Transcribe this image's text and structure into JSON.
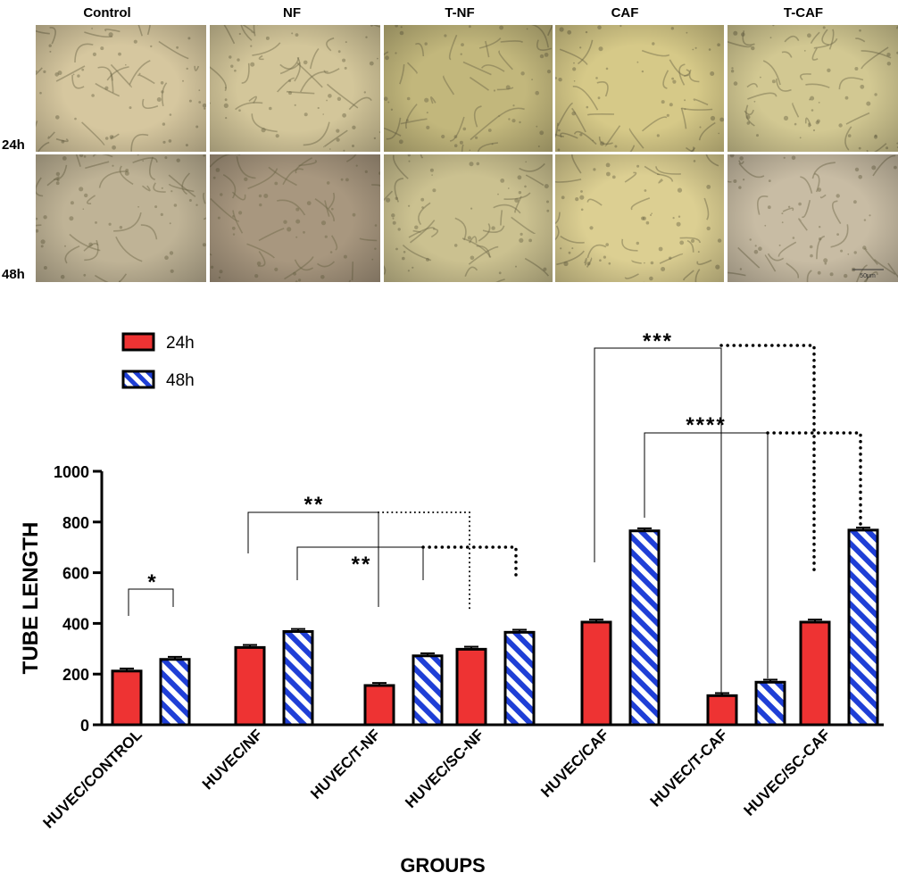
{
  "micrographs": {
    "columns": [
      "Control",
      "NF",
      "T-NF",
      "CAF",
      "T-CAF"
    ],
    "rows": [
      "24h",
      "48h"
    ],
    "scale_bar": "50μm",
    "tones": [
      [
        "#d6c79f",
        "#d3c69a",
        "#c2b77c",
        "#d6c988",
        "#d2c892"
      ],
      [
        "#bfb396",
        "#a8977f",
        "#cbc190",
        "#dccf92",
        "#c8bca4"
      ]
    ]
  },
  "chart_data": {
    "type": "bar",
    "title": "",
    "xlabel": "GROUPS",
    "ylabel": "TUBE LENGTH",
    "ylim": [
      0,
      1000
    ],
    "yticks": [
      "0",
      "200",
      "400",
      "600",
      "800",
      "1000"
    ],
    "categories": [
      "HUVEC/CONTROL",
      "HUVEC/NF",
      "HUVEC/T-NF",
      "HUVEC/SC-NF",
      "HUVEC/CAF",
      "HUVEC/T-CAF",
      "HUVEC/SC-CAF"
    ],
    "series": [
      {
        "name": "24h",
        "color": "#ee3333",
        "pattern": "solid",
        "values": [
          212,
          305,
          155,
          298,
          405,
          115,
          405
        ],
        "errors": [
          10,
          10,
          10,
          10,
          10,
          10,
          10
        ]
      },
      {
        "name": "48h",
        "color": "#1f3fd6",
        "pattern": "diagonal-stripes",
        "values": [
          258,
          368,
          272,
          365,
          765,
          168,
          768
        ],
        "errors": [
          10,
          10,
          10,
          10,
          10,
          10,
          10
        ]
      }
    ],
    "legend_placement": "top-left",
    "grid": false,
    "significance": [
      {
        "label": "*"
      },
      {
        "label": "**"
      },
      {
        "label": "**"
      },
      {
        "label": "***"
      },
      {
        "label": "****"
      }
    ]
  }
}
